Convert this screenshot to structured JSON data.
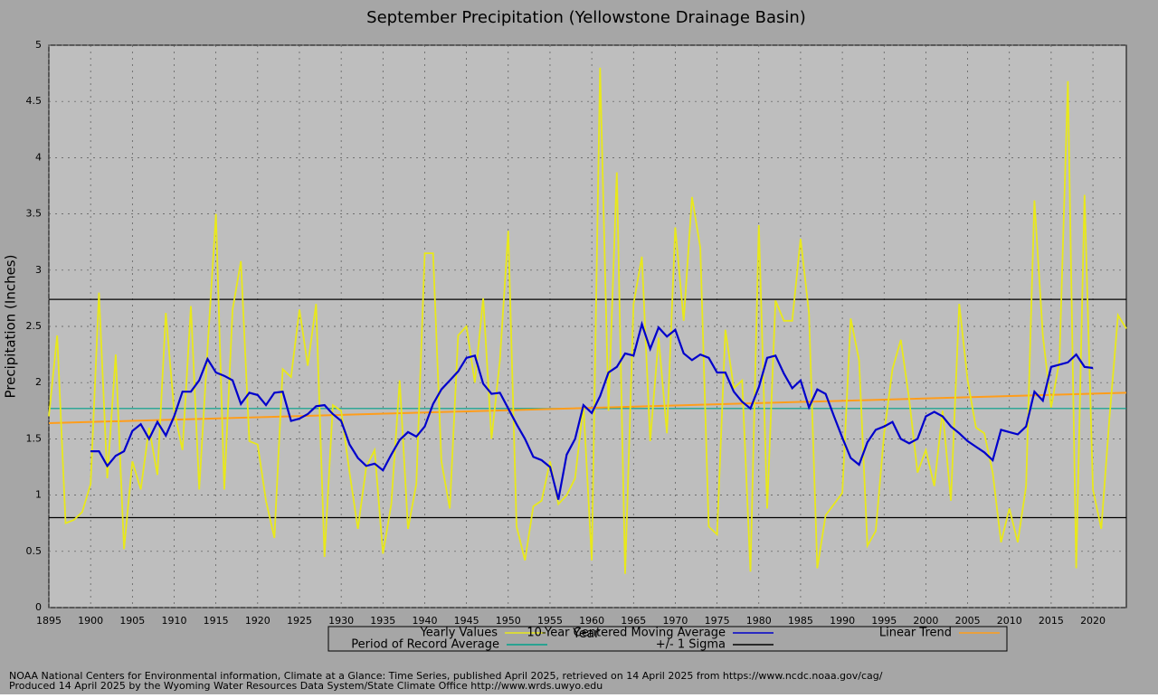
{
  "chart_data": {
    "type": "line",
    "title": "September Precipitation (Yellowstone Drainage Basin)",
    "xlabel": "Year",
    "ylabel": "Precipitation (Inches)",
    "x": [
      1895,
      1896,
      1897,
      1898,
      1899,
      1900,
      1901,
      1902,
      1903,
      1904,
      1905,
      1906,
      1907,
      1908,
      1909,
      1910,
      1911,
      1912,
      1913,
      1914,
      1915,
      1916,
      1917,
      1918,
      1919,
      1920,
      1921,
      1922,
      1923,
      1924,
      1925,
      1926,
      1927,
      1928,
      1929,
      1930,
      1931,
      1932,
      1933,
      1934,
      1935,
      1936,
      1937,
      1938,
      1939,
      1940,
      1941,
      1942,
      1943,
      1944,
      1945,
      1946,
      1947,
      1948,
      1949,
      1950,
      1951,
      1952,
      1953,
      1954,
      1955,
      1956,
      1957,
      1958,
      1959,
      1960,
      1961,
      1962,
      1963,
      1964,
      1965,
      1966,
      1967,
      1968,
      1969,
      1970,
      1971,
      1972,
      1973,
      1974,
      1975,
      1976,
      1977,
      1978,
      1979,
      1980,
      1981,
      1982,
      1983,
      1984,
      1985,
      1986,
      1987,
      1988,
      1989,
      1990,
      1991,
      1992,
      1993,
      1994,
      1995,
      1996,
      1997,
      1998,
      1999,
      2000,
      2001,
      2002,
      2003,
      2004,
      2005,
      2006,
      2007,
      2008,
      2009,
      2010,
      2011,
      2012,
      2013,
      2014,
      2015,
      2016,
      2017,
      2018,
      2019,
      2020,
      2021,
      2022,
      2023,
      2024
    ],
    "series": [
      {
        "name": "Yearly Values",
        "color": "#e8e81a",
        "values": [
          1.7,
          2.42,
          0.75,
          0.78,
          0.85,
          1.1,
          2.8,
          1.15,
          2.25,
          0.52,
          1.3,
          1.05,
          1.6,
          1.18,
          2.62,
          1.75,
          1.4,
          2.68,
          1.05,
          2.3,
          3.5,
          1.05,
          2.65,
          3.08,
          1.48,
          1.45,
          0.95,
          0.62,
          2.12,
          2.05,
          2.65,
          2.15,
          2.7,
          0.45,
          1.8,
          1.75,
          1.2,
          0.7,
          1.25,
          1.4,
          0.48,
          0.92,
          2.02,
          0.7,
          1.1,
          3.15,
          3.15,
          1.3,
          0.88,
          2.42,
          2.5,
          2.0,
          2.75,
          1.5,
          2.2,
          3.35,
          0.72,
          0.42,
          0.9,
          0.95,
          1.3,
          0.92,
          1.0,
          1.15,
          1.8,
          0.42,
          4.8,
          1.75,
          3.87,
          0.3,
          2.7,
          3.12,
          1.48,
          2.4,
          1.55,
          3.38,
          2.55,
          3.65,
          3.2,
          0.72,
          0.65,
          2.47,
          1.95,
          2.02,
          0.32,
          3.4,
          0.88,
          2.73,
          2.55,
          2.55,
          3.28,
          2.62,
          0.35,
          0.82,
          0.92,
          1.02,
          2.57,
          2.2,
          0.55,
          0.68,
          1.55,
          2.12,
          2.38,
          1.85,
          1.2,
          1.4,
          1.08,
          1.75,
          0.95,
          2.7,
          2.02,
          1.6,
          1.55,
          1.2,
          0.58,
          0.88,
          0.58,
          1.08,
          3.62,
          2.42,
          1.78,
          2.2,
          4.68,
          0.35,
          3.67,
          1.05,
          0.7,
          1.7,
          2.6,
          2.48
        ]
      },
      {
        "name": "10-Year Centered Moving Average",
        "color": "#0000cc",
        "values": [
          null,
          null,
          null,
          null,
          null,
          1.39,
          1.39,
          1.26,
          1.35,
          1.39,
          1.57,
          1.63,
          1.5,
          1.65,
          1.53,
          1.7,
          1.92,
          1.92,
          2.02,
          2.21,
          2.09,
          2.06,
          2.02,
          1.81,
          1.91,
          1.89,
          1.8,
          1.91,
          1.92,
          1.66,
          1.68,
          1.72,
          1.79,
          1.8,
          1.72,
          1.66,
          1.45,
          1.33,
          1.26,
          1.28,
          1.22,
          1.36,
          1.49,
          1.56,
          1.52,
          1.61,
          1.81,
          1.94,
          2.02,
          2.1,
          2.22,
          2.24,
          1.99,
          1.9,
          1.91,
          1.77,
          1.63,
          1.5,
          1.34,
          1.31,
          1.25,
          0.96,
          1.36,
          1.5,
          1.8,
          1.73,
          1.88,
          2.09,
          2.14,
          2.26,
          2.24,
          2.52,
          2.3,
          2.49,
          2.41,
          2.47,
          2.26,
          2.2,
          2.25,
          2.22,
          2.09,
          2.09,
          1.92,
          1.83,
          1.77,
          1.96,
          2.22,
          2.24,
          2.08,
          1.95,
          2.02,
          1.78,
          1.94,
          1.9,
          1.7,
          1.51,
          1.33,
          1.27,
          1.47,
          1.58,
          1.61,
          1.65,
          1.5,
          1.46,
          1.5,
          1.7,
          1.74,
          1.7,
          1.61,
          1.55,
          1.48,
          1.43,
          1.38,
          1.31,
          1.58,
          1.56,
          1.54,
          1.61,
          1.92,
          1.84,
          2.14,
          2.16,
          2.18,
          2.25,
          2.14,
          2.13,
          null,
          null,
          null,
          null
        ]
      }
    ],
    "trend": {
      "name": "Linear Trend",
      "color": "#ff9d1a",
      "x": [
        1895,
        2024
      ],
      "values": [
        1.64,
        1.91
      ]
    },
    "average": {
      "name": "Period of Record Average",
      "color": "#00a08a",
      "value": 1.77
    },
    "sigma": {
      "name": "+/- 1 Sigma",
      "color": "#000000",
      "values": [
        0.8,
        2.74
      ]
    },
    "xlim": [
      1895,
      2024
    ],
    "ylim": [
      0,
      5
    ],
    "xticks": [
      1895,
      1900,
      1905,
      1910,
      1915,
      1920,
      1925,
      1930,
      1935,
      1940,
      1945,
      1950,
      1955,
      1960,
      1965,
      1970,
      1975,
      1980,
      1985,
      1990,
      1995,
      2000,
      2005,
      2010,
      2015,
      2020
    ],
    "yticks": [
      0,
      0.5,
      1,
      1.5,
      2,
      2.5,
      3,
      3.5,
      4,
      4.5,
      5
    ],
    "grid": true,
    "footer": [
      "NOAA National Centers for Environmental information, Climate at a Glance: Time Series, published April 2025, retrieved on 14 April 2025 from https://www.ncdc.noaa.gov/cag/",
      "Produced 14 April 2025 by the Wyoming Water Resources Data System/State Climate Office http://www.wrds.uwyo.edu"
    ]
  }
}
